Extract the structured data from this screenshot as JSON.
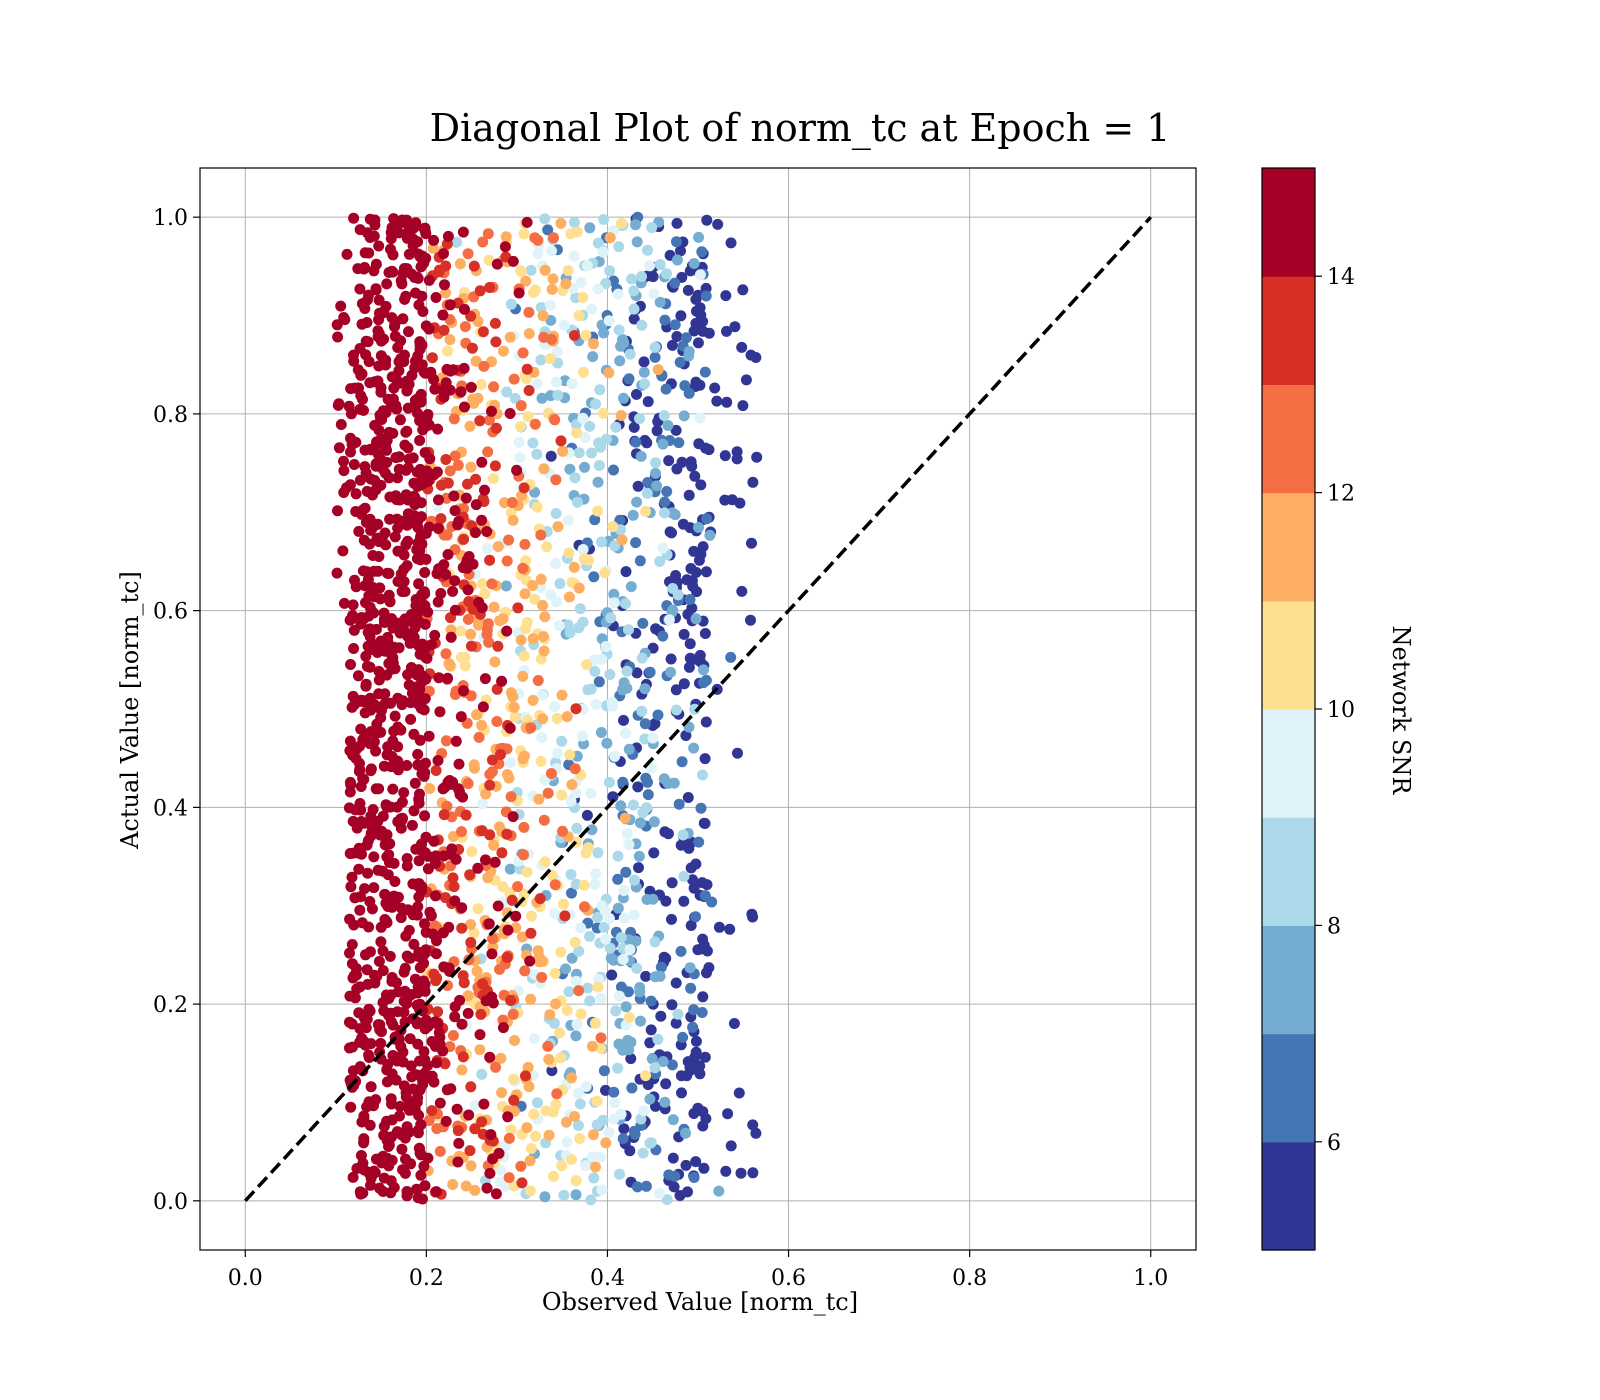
{
  "chart_data": {
    "type": "scatter",
    "title": "Diagonal Plot of norm_tc at Epoch = 1",
    "xlabel": "Observed Value [norm_tc]",
    "ylabel": "Actual Value [norm_tc]",
    "xlim": [
      -0.05,
      1.05
    ],
    "ylim": [
      -0.05,
      1.05
    ],
    "xticks": [
      "0.0",
      "0.2",
      "0.4",
      "0.6",
      "0.8",
      "1.0"
    ],
    "yticks": [
      "0.0",
      "0.2",
      "0.4",
      "0.6",
      "0.8",
      "1.0"
    ],
    "grid": true,
    "reference_line": {
      "style": "dashed",
      "color": "#000000",
      "x": [
        0,
        1
      ],
      "y": [
        0,
        1
      ]
    },
    "point_distribution": {
      "x_range": [
        0.1,
        0.57
      ],
      "y_range": [
        0.0,
        1.0
      ],
      "trend": "color decreases from SNR >=15 near x=0.13-0.2 to SNR ~5 near x=0.5-0.57"
    },
    "colorbar": {
      "label": "Network SNR",
      "range": [
        5,
        15
      ],
      "ticks": [
        "6",
        "8",
        "10",
        "12",
        "14"
      ],
      "levels": [
        {
          "from": 5,
          "to": 6,
          "color": "#313695"
        },
        {
          "from": 6,
          "to": 7,
          "color": "#4575b4"
        },
        {
          "from": 7,
          "to": 8,
          "color": "#74add1"
        },
        {
          "from": 8,
          "to": 9,
          "color": "#abd9e9"
        },
        {
          "from": 9,
          "to": 10,
          "color": "#e0f3f8"
        },
        {
          "from": 10,
          "to": 11,
          "color": "#fee090"
        },
        {
          "from": 11,
          "to": 12,
          "color": "#fdae61"
        },
        {
          "from": 12,
          "to": 13,
          "color": "#f46d43"
        },
        {
          "from": 13,
          "to": 14,
          "color": "#d73027"
        },
        {
          "from": 14,
          "to": 15,
          "color": "#a50026"
        }
      ]
    }
  }
}
